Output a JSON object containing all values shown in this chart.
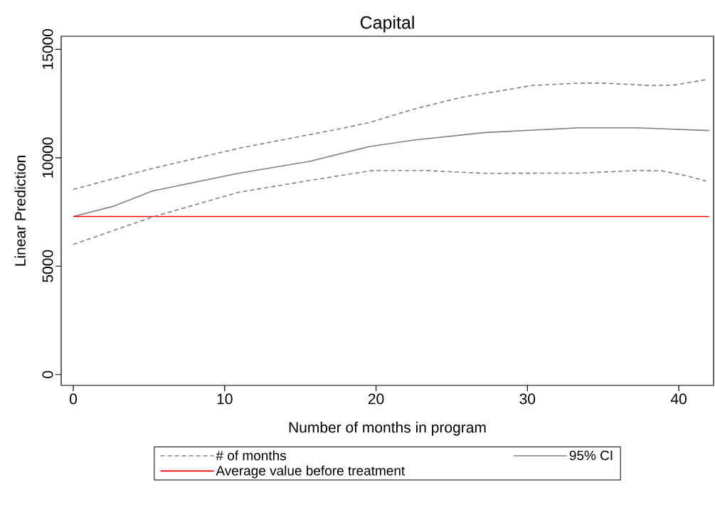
{
  "chart_data": {
    "type": "line",
    "title": "Capital",
    "xlabel": "Number of months in program",
    "ylabel": "Linear Prediction",
    "xlim": [
      -0.8,
      42.3
    ],
    "ylim": [
      -500,
      15600
    ],
    "xticks": [
      0,
      10,
      20,
      30,
      40
    ],
    "yticks": [
      0,
      5000,
      10000,
      15000
    ],
    "legend": "bottom",
    "series": [
      {
        "name": "# of months",
        "color": "#808080",
        "line_style": "dashed",
        "x": [
          0,
          5.2,
          10.9,
          17.8,
          19.6,
          22.5,
          25.6,
          30.3,
          33.4,
          35.0,
          38.1,
          39.7,
          41.8
        ],
        "values": [
          8540,
          9500,
          10430,
          11360,
          11630,
          12240,
          12780,
          13330,
          13440,
          13440,
          13330,
          13350,
          13600
        ]
      },
      {
        "name": "95% CI",
        "color": "#808080",
        "line_style": "solid",
        "x": [
          0,
          2.6,
          5.2,
          10.9,
          15.6,
          19.6,
          22.5,
          27.2,
          33.4,
          37.3,
          42.0
        ],
        "values": [
          7290,
          7750,
          8460,
          9280,
          9830,
          10520,
          10810,
          11160,
          11380,
          11380,
          11250
        ]
      },
      {
        "name": "Average value before treatment",
        "color": "#ff0000",
        "line_style": "solid",
        "x": [
          0,
          42
        ],
        "values": [
          7290,
          7290
        ]
      },
      {
        "color": "#808080",
        "line_style": "dashed",
        "x": [
          0,
          5.2,
          10.9,
          15.6,
          19.6,
          20.1,
          23.2,
          27.2,
          33.4,
          37.3,
          38.9,
          40.5,
          41.8
        ],
        "values": [
          6000,
          7260,
          8400,
          8950,
          9390,
          9410,
          9410,
          9280,
          9290,
          9410,
          9390,
          9170,
          8920
        ]
      }
    ]
  }
}
